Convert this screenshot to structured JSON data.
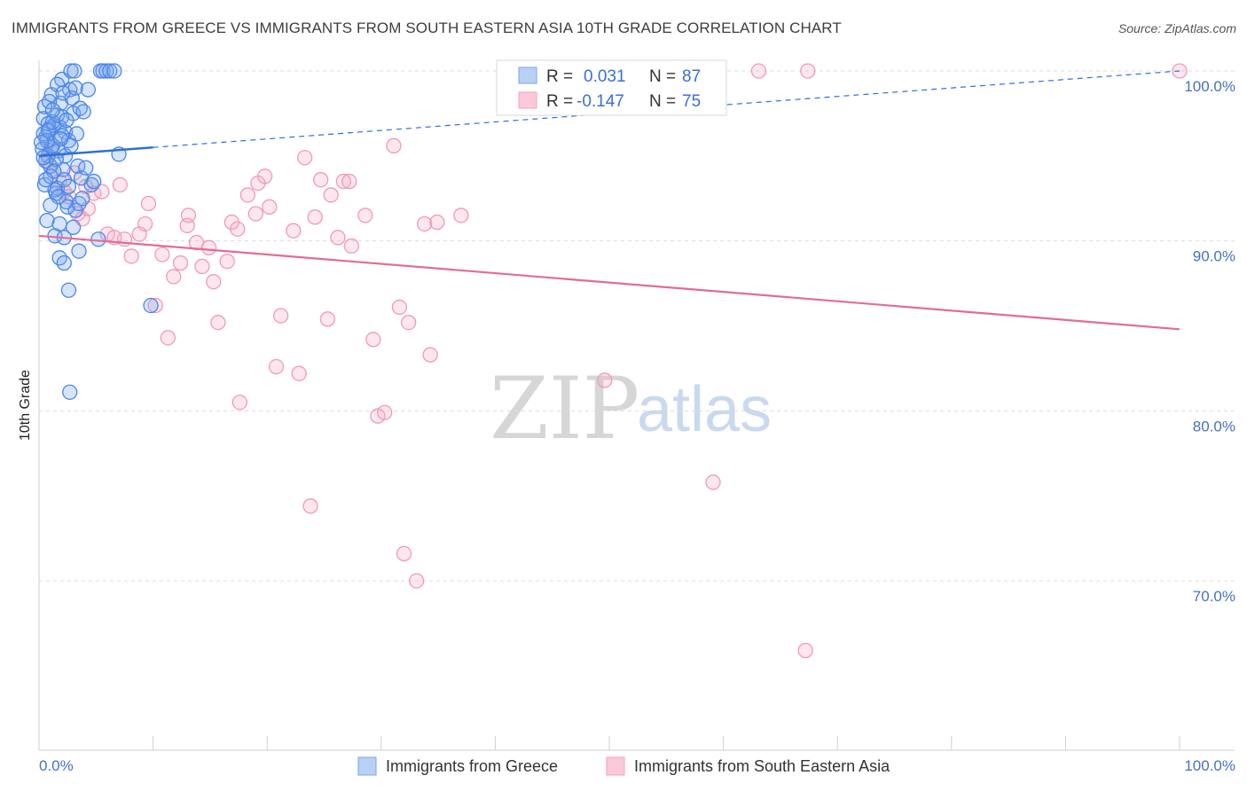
{
  "title": "IMMIGRANTS FROM GREECE VS IMMIGRANTS FROM SOUTH EASTERN ASIA 10TH GRADE CORRELATION CHART",
  "source": "Source: ZipAtlas.com",
  "watermark": {
    "zip": "ZIP",
    "atlas": "atlas"
  },
  "colors": {
    "blue": "#4a86e8",
    "blue_line": "#2f6fd6",
    "pink": "#f29bb8",
    "pink_line": "#e36b96",
    "grid": "#dcdcdc",
    "axis_text": "#4472c4"
  },
  "legend": {
    "rows": [
      {
        "r_label": "R =",
        "r_value": "0.031",
        "n_label": "N =",
        "n_value": "87"
      },
      {
        "r_label": "R =",
        "r_value": "-0.147",
        "n_label": "N =",
        "n_value": "75"
      }
    ]
  },
  "chart_data": {
    "type": "scatter",
    "title": "IMMIGRANTS FROM GREECE VS IMMIGRANTS FROM SOUTH EASTERN ASIA 10TH GRADE CORRELATION CHART",
    "xlabel": "",
    "ylabel": "10th Grade",
    "xlim": [
      0,
      100
    ],
    "ylim": [
      60,
      101.5
    ],
    "x_tick_labels": [
      "0.0%",
      "100.0%"
    ],
    "y_ticks": [
      70,
      80,
      90,
      100
    ],
    "y_tick_labels": [
      "70.0%",
      "80.0%",
      "90.0%",
      "100.0%"
    ],
    "grid": true,
    "series": [
      {
        "name": "Immigrants from Greece",
        "color": "#4a86e8",
        "R": 0.031,
        "N": 87,
        "trend": {
          "x": [
            0,
            10
          ],
          "y": [
            95.0,
            95.5
          ],
          "dashed_extension": {
            "x": [
              10,
              100
            ],
            "y": [
              95.5,
              100.0
            ]
          }
        },
        "points": [
          [
            0.4,
            97.2
          ],
          [
            0.6,
            96.1
          ],
          [
            0.8,
            95.0
          ],
          [
            1.0,
            94.4
          ],
          [
            1.2,
            95.6
          ],
          [
            0.5,
            93.3
          ],
          [
            0.7,
            91.2
          ],
          [
            1.5,
            92.8
          ],
          [
            1.8,
            96.7
          ],
          [
            2.0,
            97.3
          ],
          [
            2.3,
            96.4
          ],
          [
            2.6,
            95.9
          ],
          [
            2.1,
            94.2
          ],
          [
            1.6,
            93.1
          ],
          [
            2.4,
            92.3
          ],
          [
            1.1,
            98.6
          ],
          [
            1.9,
            98.1
          ],
          [
            2.7,
            98.9
          ],
          [
            3.0,
            97.5
          ],
          [
            3.3,
            96.3
          ],
          [
            3.6,
            97.8
          ],
          [
            3.9,
            97.6
          ],
          [
            4.3,
            98.9
          ],
          [
            2.0,
            99.5
          ],
          [
            2.8,
            100.0
          ],
          [
            3.1,
            100.0
          ],
          [
            5.4,
            100.0
          ],
          [
            5.6,
            100.0
          ],
          [
            5.9,
            100.0
          ],
          [
            6.2,
            100.0
          ],
          [
            6.6,
            100.0
          ],
          [
            0.9,
            96.6
          ],
          [
            1.3,
            96.8
          ],
          [
            1.7,
            95.3
          ],
          [
            2.2,
            93.6
          ],
          [
            2.5,
            92.0
          ],
          [
            3.2,
            91.8
          ],
          [
            3.5,
            92.2
          ],
          [
            1.4,
            90.3
          ],
          [
            1.8,
            89.0
          ],
          [
            2.2,
            88.7
          ],
          [
            2.6,
            87.1
          ],
          [
            3.8,
            92.5
          ],
          [
            4.6,
            93.3
          ],
          [
            5.2,
            90.1
          ],
          [
            7.0,
            95.1
          ],
          [
            9.8,
            86.2
          ],
          [
            0.3,
            95.4
          ],
          [
            0.8,
            96.9
          ],
          [
            1.2,
            97.0
          ],
          [
            1.6,
            97.4
          ],
          [
            2.0,
            96.2
          ],
          [
            2.3,
            95.0
          ],
          [
            0.6,
            94.7
          ],
          [
            1.0,
            93.8
          ],
          [
            1.4,
            93.0
          ],
          [
            2.8,
            95.6
          ],
          [
            3.4,
            94.4
          ],
          [
            3.7,
            93.7
          ],
          [
            0.4,
            96.3
          ],
          [
            1.1,
            95.5
          ],
          [
            1.5,
            94.8
          ],
          [
            1.9,
            96.0
          ],
          [
            2.4,
            97.1
          ],
          [
            2.9,
            98.4
          ],
          [
            3.2,
            99.0
          ],
          [
            0.7,
            95.9
          ],
          [
            1.3,
            94.1
          ],
          [
            1.7,
            92.6
          ],
          [
            2.6,
            93.2
          ],
          [
            3.0,
            90.8
          ],
          [
            0.5,
            97.9
          ],
          [
            0.9,
            98.2
          ],
          [
            1.6,
            99.2
          ],
          [
            2.1,
            98.7
          ],
          [
            4.1,
            94.3
          ],
          [
            4.8,
            93.5
          ],
          [
            2.7,
            81.1
          ],
          [
            0.2,
            95.8
          ],
          [
            0.6,
            93.6
          ],
          [
            1.0,
            92.1
          ],
          [
            1.8,
            91.0
          ],
          [
            2.2,
            90.2
          ],
          [
            3.5,
            89.4
          ],
          [
            0.4,
            94.9
          ],
          [
            0.8,
            96.5
          ],
          [
            1.2,
            97.7
          ]
        ]
      },
      {
        "name": "Immigrants from South Eastern Asia",
        "color": "#f29bb8",
        "R": -0.147,
        "N": 75,
        "trend": {
          "x": [
            0,
            100
          ],
          "y": [
            90.3,
            84.8
          ]
        },
        "points": [
          [
            0.8,
            94.6
          ],
          [
            1.3,
            94.1
          ],
          [
            1.8,
            93.5
          ],
          [
            2.2,
            92.9
          ],
          [
            3.1,
            94.0
          ],
          [
            3.8,
            91.3
          ],
          [
            4.3,
            91.9
          ],
          [
            4.8,
            92.8
          ],
          [
            5.5,
            92.9
          ],
          [
            6.0,
            90.4
          ],
          [
            6.6,
            90.2
          ],
          [
            7.1,
            93.3
          ],
          [
            7.5,
            90.1
          ],
          [
            8.1,
            89.1
          ],
          [
            8.8,
            90.4
          ],
          [
            9.3,
            91.0
          ],
          [
            9.6,
            92.2
          ],
          [
            10.2,
            86.2
          ],
          [
            10.8,
            89.2
          ],
          [
            11.3,
            84.3
          ],
          [
            11.8,
            87.9
          ],
          [
            12.4,
            88.7
          ],
          [
            13.0,
            90.9
          ],
          [
            13.1,
            91.5
          ],
          [
            13.8,
            89.9
          ],
          [
            14.3,
            88.5
          ],
          [
            14.9,
            89.6
          ],
          [
            15.3,
            87.6
          ],
          [
            15.7,
            85.2
          ],
          [
            16.5,
            88.8
          ],
          [
            16.9,
            91.1
          ],
          [
            17.4,
            90.7
          ],
          [
            17.6,
            80.5
          ],
          [
            18.3,
            92.7
          ],
          [
            19.0,
            91.6
          ],
          [
            19.2,
            93.4
          ],
          [
            19.8,
            93.8
          ],
          [
            20.2,
            92.0
          ],
          [
            20.8,
            82.6
          ],
          [
            21.2,
            85.6
          ],
          [
            22.3,
            90.6
          ],
          [
            22.8,
            82.2
          ],
          [
            23.3,
            94.9
          ],
          [
            23.8,
            74.4
          ],
          [
            24.2,
            91.4
          ],
          [
            24.7,
            93.6
          ],
          [
            25.3,
            85.4
          ],
          [
            25.6,
            92.7
          ],
          [
            26.2,
            90.2
          ],
          [
            26.7,
            93.5
          ],
          [
            27.2,
            93.5
          ],
          [
            27.4,
            89.7
          ],
          [
            28.6,
            91.5
          ],
          [
            29.3,
            84.2
          ],
          [
            29.7,
            79.7
          ],
          [
            30.3,
            79.9
          ],
          [
            31.1,
            95.6
          ],
          [
            31.6,
            86.1
          ],
          [
            32.0,
            71.6
          ],
          [
            32.4,
            85.2
          ],
          [
            33.1,
            70.0
          ],
          [
            33.8,
            91.0
          ],
          [
            34.3,
            83.3
          ],
          [
            34.9,
            91.1
          ],
          [
            37.0,
            91.5
          ],
          [
            49.6,
            81.8
          ],
          [
            59.1,
            75.8
          ],
          [
            63.1,
            100.0
          ],
          [
            67.2,
            65.9
          ],
          [
            67.4,
            100.0
          ],
          [
            100.0,
            100.0
          ],
          [
            1.0,
            95.3
          ],
          [
            2.6,
            92.6
          ],
          [
            3.4,
            91.6
          ],
          [
            4.1,
            93.2
          ]
        ]
      }
    ]
  },
  "axis": {
    "y_label": "10th Grade",
    "x_left_label": "0.0%",
    "x_right_label": "100.0%",
    "y_tick_labels": [
      "70.0%",
      "80.0%",
      "90.0%",
      "100.0%"
    ]
  },
  "bottom_legend": {
    "items": [
      {
        "label": "Immigrants from Greece"
      },
      {
        "label": "Immigrants from South Eastern Asia"
      }
    ]
  }
}
